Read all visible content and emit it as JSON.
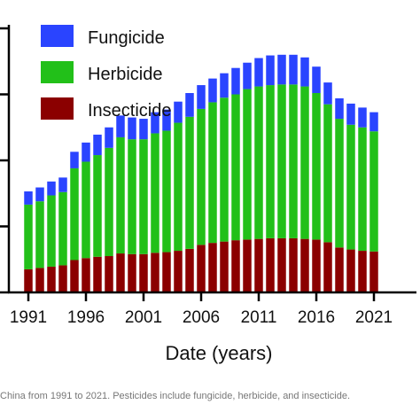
{
  "chart_data": {
    "type": "bar",
    "stacked": true,
    "xlabel": "Date (years)",
    "ylabel": "",
    "ylim": [
      0,
      2000
    ],
    "yticks": [
      0,
      500,
      1000,
      1500,
      2000
    ],
    "xticks": [
      "1991",
      "1996",
      "2001",
      "2006",
      "2011",
      "2016",
      "2021"
    ],
    "categories": [
      "1991",
      "1992",
      "1993",
      "1994",
      "1995",
      "1996",
      "1997",
      "1998",
      "1999",
      "2000",
      "2001",
      "2002",
      "2003",
      "2004",
      "2005",
      "2006",
      "2007",
      "2008",
      "2009",
      "2010",
      "2011",
      "2012",
      "2013",
      "2014",
      "2015",
      "2016",
      "2017",
      "2018",
      "2019",
      "2020",
      "2021"
    ],
    "series": [
      {
        "name": "Insecticide",
        "color": "#8b0000",
        "values": [
          175,
          185,
          195,
          205,
          245,
          260,
          270,
          275,
          295,
          290,
          290,
          300,
          305,
          315,
          330,
          360,
          375,
          385,
          395,
          400,
          405,
          410,
          410,
          410,
          405,
          400,
          380,
          340,
          325,
          315,
          310
        ]
      },
      {
        "name": "Herbicide",
        "color": "#22c019",
        "values": [
          490,
          505,
          540,
          555,
          695,
          730,
          770,
          820,
          880,
          870,
          870,
          905,
          920,
          970,
          1000,
          1030,
          1065,
          1090,
          1105,
          1140,
          1155,
          1160,
          1165,
          1165,
          1155,
          1110,
          1045,
          975,
          945,
          935,
          910
        ]
      },
      {
        "name": "Fungicide",
        "color": "#2a44ff",
        "values": [
          100,
          105,
          105,
          110,
          125,
          145,
          155,
          155,
          165,
          165,
          155,
          160,
          160,
          160,
          180,
          180,
          180,
          185,
          200,
          200,
          215,
          225,
          225,
          225,
          220,
          200,
          165,
          155,
          160,
          150,
          145
        ]
      }
    ],
    "legend": {
      "position": "top-left",
      "order": [
        "Fungicide",
        "Herbicide",
        "Insecticide"
      ]
    },
    "grid": false
  },
  "caption": "China from 1991 to 2021. Pesticides include fungicide, herbicide, and insecticide."
}
